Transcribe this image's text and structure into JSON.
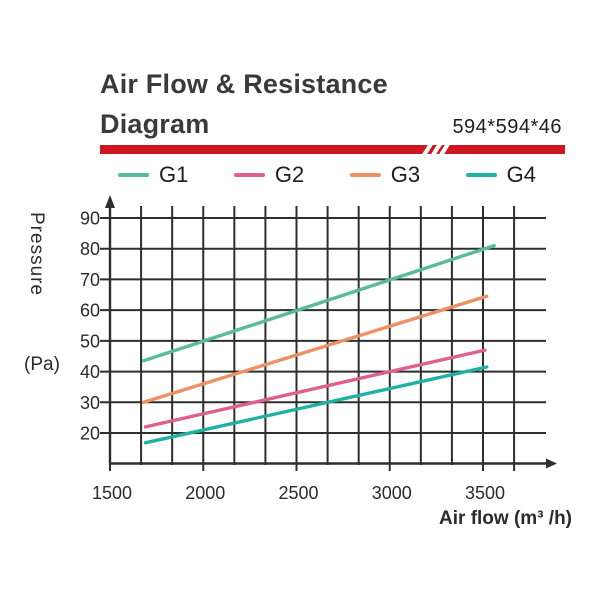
{
  "header": {
    "title": "Air Flow & Resistance Diagram",
    "size_label": "594*594*46",
    "accent_color": "#cd1721"
  },
  "legend": {
    "items": [
      {
        "label": "G1",
        "color": "#58bd96"
      },
      {
        "label": "G2",
        "color": "#e05f90"
      },
      {
        "label": "G3",
        "color": "#ee9066"
      },
      {
        "label": "G4",
        "color": "#1fb2a3"
      }
    ]
  },
  "axis_labels": {
    "y_title": "Pressure",
    "y_unit": "(Pa)",
    "x_title": "Air flow  (m³ /h)"
  },
  "chart_data": {
    "type": "line",
    "title": "Air Flow & Resistance Diagram",
    "xlabel": "Air flow (m³/h)",
    "ylabel": "Pressure (Pa)",
    "x_ticks": [
      1500,
      2000,
      2500,
      3000,
      3500
    ],
    "y_ticks": [
      20,
      30,
      40,
      50,
      60,
      70,
      80,
      90
    ],
    "xlim": [
      1500,
      3667
    ],
    "ylim": [
      10,
      93
    ],
    "grid": true,
    "x_minor_per_major": 3,
    "legend_position": "top",
    "series": [
      {
        "name": "G1",
        "color": "#58bd96",
        "points": [
          [
            1680,
            43.5
          ],
          [
            3560,
            81
          ]
        ]
      },
      {
        "name": "G2",
        "color": "#e05f90",
        "points": [
          [
            1690,
            22
          ],
          [
            3510,
            47
          ]
        ]
      },
      {
        "name": "G3",
        "color": "#ee9066",
        "points": [
          [
            1680,
            30
          ],
          [
            3520,
            64.5
          ]
        ]
      },
      {
        "name": "G4",
        "color": "#1fb2a3",
        "points": [
          [
            1690,
            16.8
          ],
          [
            3520,
            41.5
          ]
        ]
      }
    ]
  }
}
